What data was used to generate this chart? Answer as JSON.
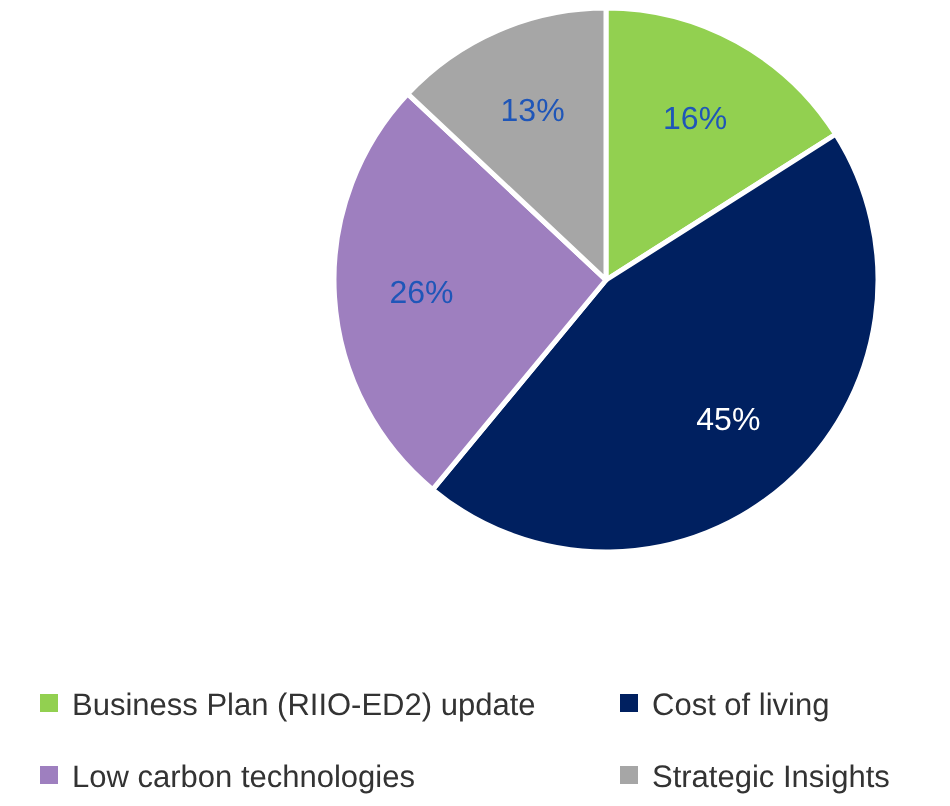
{
  "chart_data": {
    "type": "pie",
    "categories": [
      "Business Plan (RIIO-ED2) update",
      "Cost of living",
      "Low carbon technologies",
      "Strategic Insights"
    ],
    "values": [
      16,
      45,
      26,
      13
    ],
    "colors": [
      "#92d050",
      "#002060",
      "#9e7fbf",
      "#a6a6a6"
    ],
    "value_labels": [
      "16%",
      "45%",
      "26%",
      "13%"
    ],
    "legend": "bottom"
  }
}
